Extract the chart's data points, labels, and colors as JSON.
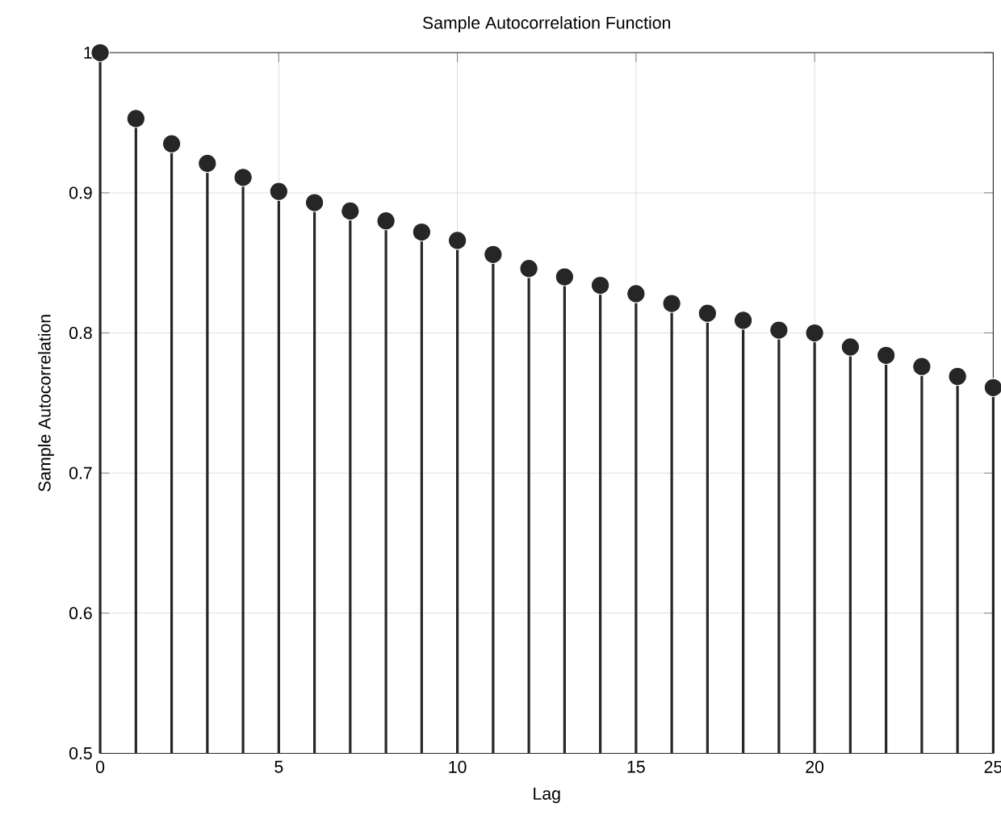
{
  "chart_data": {
    "type": "lollipop",
    "title": "Sample Autocorrelation Function",
    "xlabel": "Lag",
    "ylabel": "Sample Autocorrelation",
    "x": [
      0,
      1,
      2,
      3,
      4,
      5,
      6,
      7,
      8,
      9,
      10,
      11,
      12,
      13,
      14,
      15,
      16,
      17,
      18,
      19,
      20,
      21,
      22,
      23,
      24,
      25
    ],
    "values": [
      1,
      0.953,
      0.935,
      0.921,
      0.911,
      0.901,
      0.893,
      0.887,
      0.88,
      0.872,
      0.866,
      0.856,
      0.846,
      0.84,
      0.834,
      0.828,
      0.821,
      0.814,
      0.809,
      0.802,
      0.8,
      0.79,
      0.784,
      0.776,
      0.769,
      0.761
    ],
    "color": "#262626",
    "marker": "circle",
    "grid": true,
    "xlim": [
      0,
      25
    ],
    "ylim": [
      0.5,
      1
    ],
    "xticks": [
      0,
      5,
      10,
      15,
      20,
      25
    ],
    "yticks": [
      0.5,
      0.6,
      0.7,
      0.8,
      0.9,
      1
    ]
  }
}
